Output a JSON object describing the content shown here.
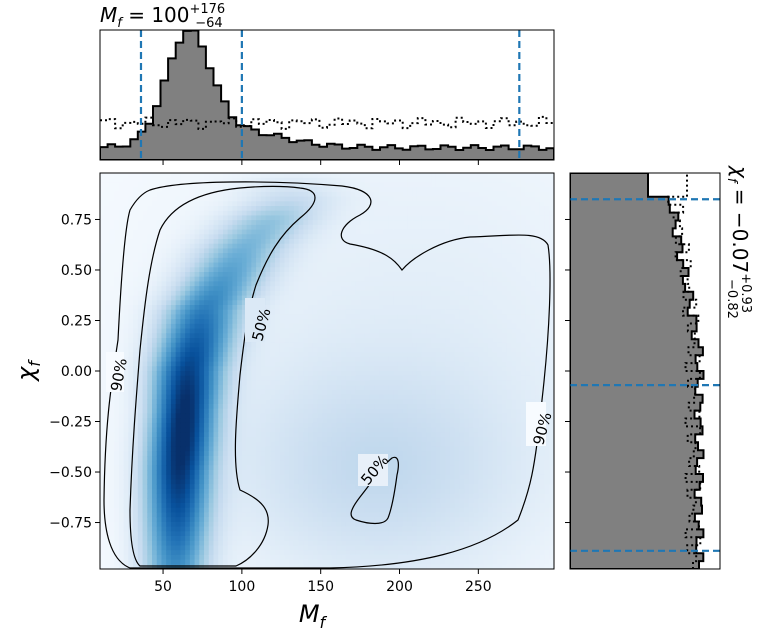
{
  "chart_data": {
    "type": "heatmap",
    "title_top_prefix": "M",
    "title_top_sub": "f",
    "title_top_value": " = 100",
    "title_top_plus": "+176",
    "title_top_minus": "−64",
    "title_right_prefix": "χ",
    "title_right_sub": "f",
    "title_right_value": " = −0.07",
    "title_right_plus": "+0.93",
    "title_right_minus": "−0.82",
    "xlabel_main": "M",
    "xlabel_sub": "f",
    "ylabel_main": "χ",
    "ylabel_sub": "f",
    "xlim": [
      10,
      298
    ],
    "ylim": [
      -0.98,
      0.98
    ],
    "x_ticks": [
      50,
      100,
      150,
      200,
      250
    ],
    "x_tick_labels": [
      "50",
      "100",
      "150",
      "200",
      "250"
    ],
    "y_ticks": [
      0.75,
      0.5,
      0.25,
      0.0,
      -0.25,
      -0.5,
      -0.75
    ],
    "y_tick_labels": [
      "0.75",
      "0.50",
      "0.25",
      "0.00",
      "−0.25",
      "−0.50",
      "−0.75"
    ],
    "contour_labels": {
      "p50_upper": "50%",
      "p50_lower": "50%",
      "p90_left": "90%",
      "p90_right": "90%"
    },
    "mf_quantiles": [
      36,
      100,
      276
    ],
    "chi_quantiles": [
      -0.89,
      -0.07,
      0.85
    ],
    "density_ridge": [
      {
        "y": -0.95,
        "x": 58
      },
      {
        "y": -0.5,
        "x": 60
      },
      {
        "y": 0.0,
        "x": 66
      },
      {
        "y": 0.3,
        "x": 76
      },
      {
        "y": 0.6,
        "x": 100
      },
      {
        "y": 0.85,
        "x": 130
      }
    ],
    "colors": {
      "heatmap": "#08306b",
      "hist_fill": "#808080",
      "quantile_line": "#1f77b4",
      "contour": "#000000"
    }
  }
}
